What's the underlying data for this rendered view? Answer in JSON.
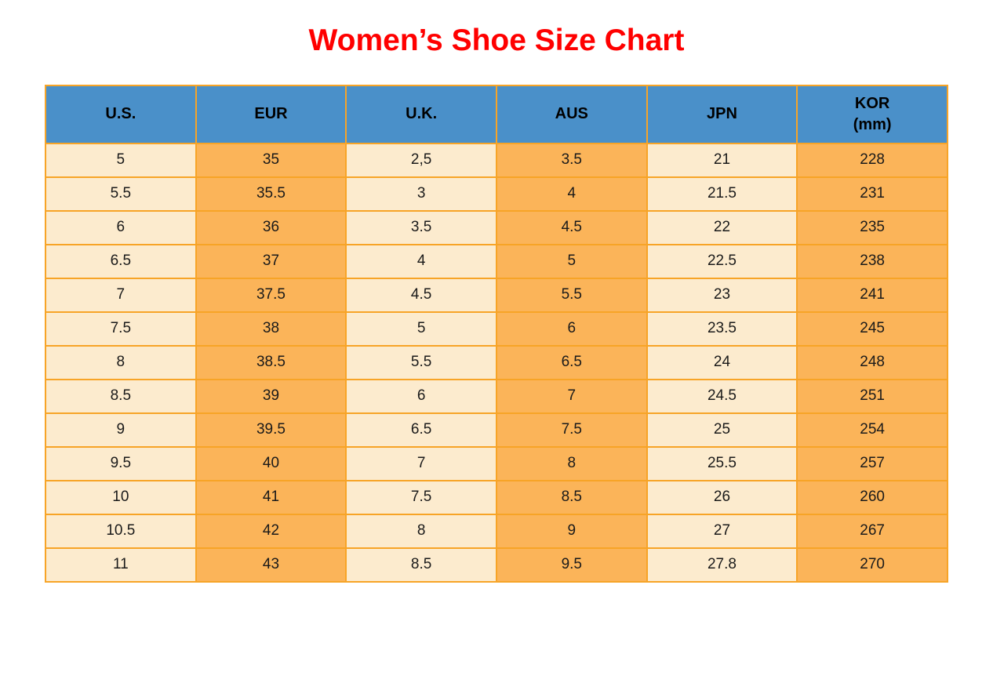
{
  "colors": {
    "page_bg": "#FFFFFF",
    "title": "#FF0000",
    "header_bg": "#4A90C9",
    "cell_light": "#FCEBCE",
    "cell_orange": "#FBB459",
    "border": "#F7A427",
    "text": "#1A1A1A",
    "header_text": "#000000"
  },
  "chart_data": {
    "type": "table",
    "title": "Women’s Shoe Size Chart",
    "columns": [
      {
        "id": "us",
        "label": "U.S.",
        "sublabel": ""
      },
      {
        "id": "eur",
        "label": "EUR",
        "sublabel": ""
      },
      {
        "id": "uk",
        "label": "U.K.",
        "sublabel": ""
      },
      {
        "id": "aus",
        "label": "AUS",
        "sublabel": ""
      },
      {
        "id": "jpn",
        "label": "JPN",
        "sublabel": ""
      },
      {
        "id": "kor",
        "label": "KOR",
        "sublabel": "(mm)"
      }
    ],
    "column_fill_pattern": [
      "light",
      "orange",
      "light",
      "orange",
      "light",
      "orange"
    ],
    "rows": [
      [
        "5",
        "35",
        "2,5",
        "3.5",
        "21",
        "228"
      ],
      [
        "5.5",
        "35.5",
        "3",
        "4",
        "21.5",
        "231"
      ],
      [
        "6",
        "36",
        "3.5",
        "4.5",
        "22",
        "235"
      ],
      [
        "6.5",
        "37",
        "4",
        "5",
        "22.5",
        "238"
      ],
      [
        "7",
        "37.5",
        "4.5",
        "5.5",
        "23",
        "241"
      ],
      [
        "7.5",
        "38",
        "5",
        "6",
        "23.5",
        "245"
      ],
      [
        "8",
        "38.5",
        "5.5",
        "6.5",
        "24",
        "248"
      ],
      [
        "8.5",
        "39",
        "6",
        "7",
        "24.5",
        "251"
      ],
      [
        "9",
        "39.5",
        "6.5",
        "7.5",
        "25",
        "254"
      ],
      [
        "9.5",
        "40",
        "7",
        "8",
        "25.5",
        "257"
      ],
      [
        "10",
        "41",
        "7.5",
        "8.5",
        "26",
        "260"
      ],
      [
        "10.5",
        "42",
        "8",
        "9",
        "27",
        "267"
      ],
      [
        "11",
        "43",
        "8.5",
        "9.5",
        "27.8",
        "270"
      ]
    ]
  }
}
